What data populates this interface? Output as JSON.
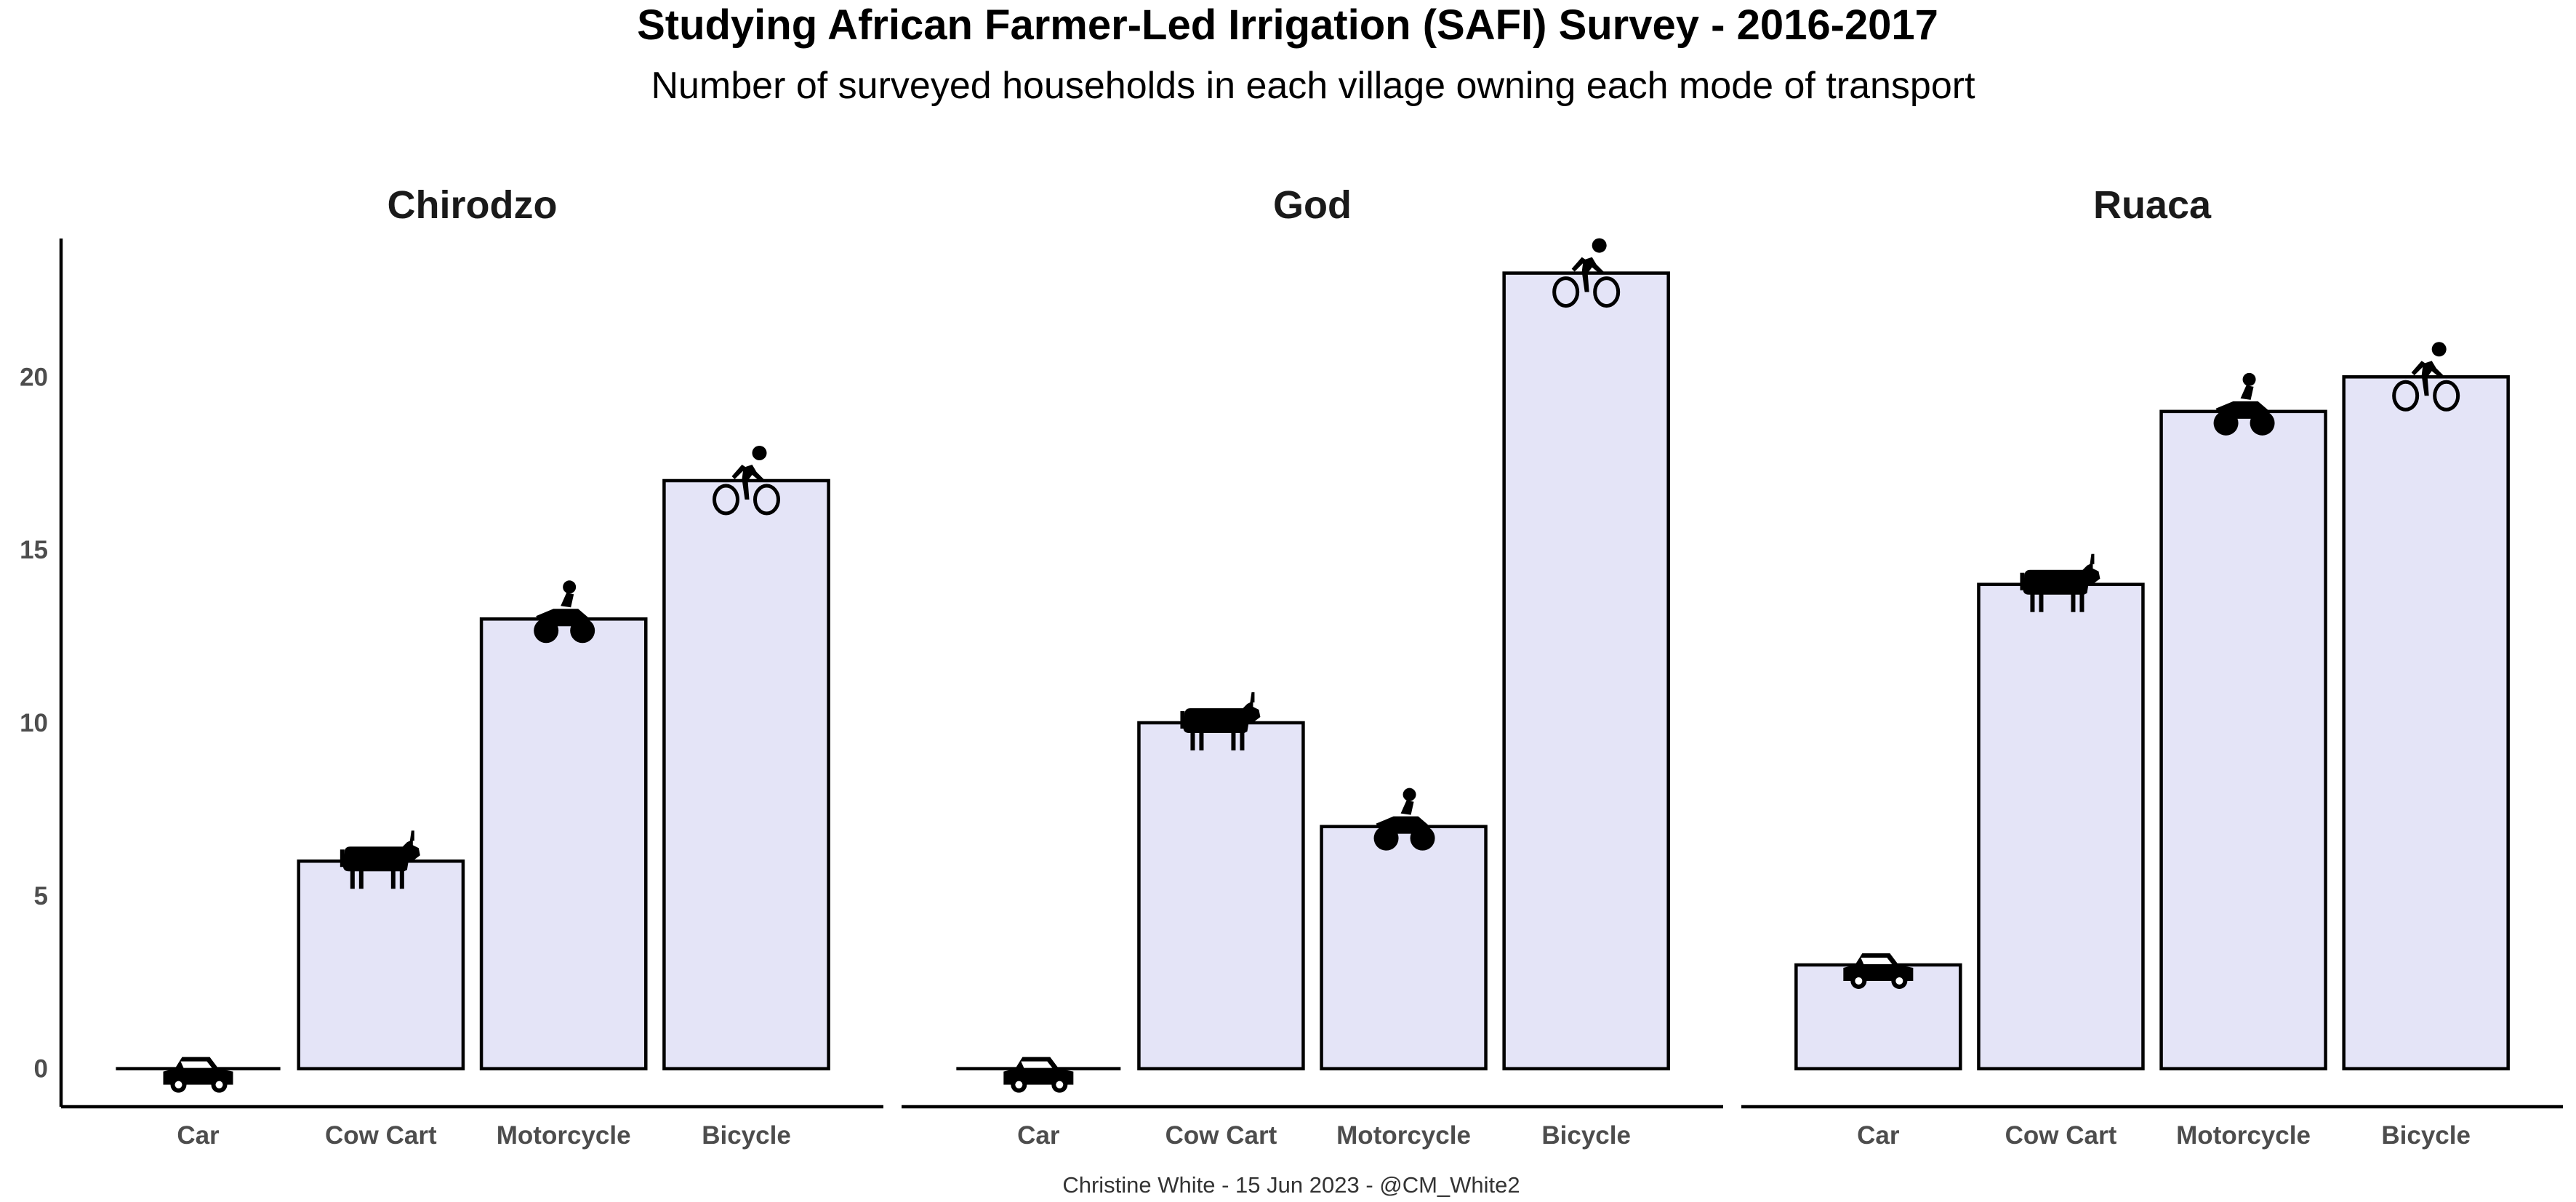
{
  "chart_data": {
    "type": "bar",
    "title": "Studying African Farmer-Led Irrigation (SAFI) Survey - 2016-2017",
    "subtitle": "Number of surveyed households in each village owning each mode of transport",
    "caption": "Christine White - 15 Jun 2023 - @CM_White2",
    "categories": [
      "Car",
      "Cow Cart",
      "Motorcycle",
      "Bicycle"
    ],
    "category_icons": [
      "car-icon",
      "cow-icon",
      "motorcycle-icon",
      "bicycle-icon"
    ],
    "facets": [
      {
        "name": "Chirodzo",
        "values": [
          0,
          6,
          13,
          17
        ]
      },
      {
        "name": "God",
        "values": [
          0,
          10,
          7,
          23
        ]
      },
      {
        "name": "Ruaca",
        "values": [
          3,
          14,
          19,
          20
        ]
      }
    ],
    "y_ticks": [
      0,
      5,
      10,
      15,
      20
    ],
    "ylim": [
      -1.1,
      24
    ],
    "grid": false,
    "colors": {
      "bar_fill": "#e4e4f7",
      "bar_stroke": "#000000",
      "icon": "#000000"
    }
  }
}
